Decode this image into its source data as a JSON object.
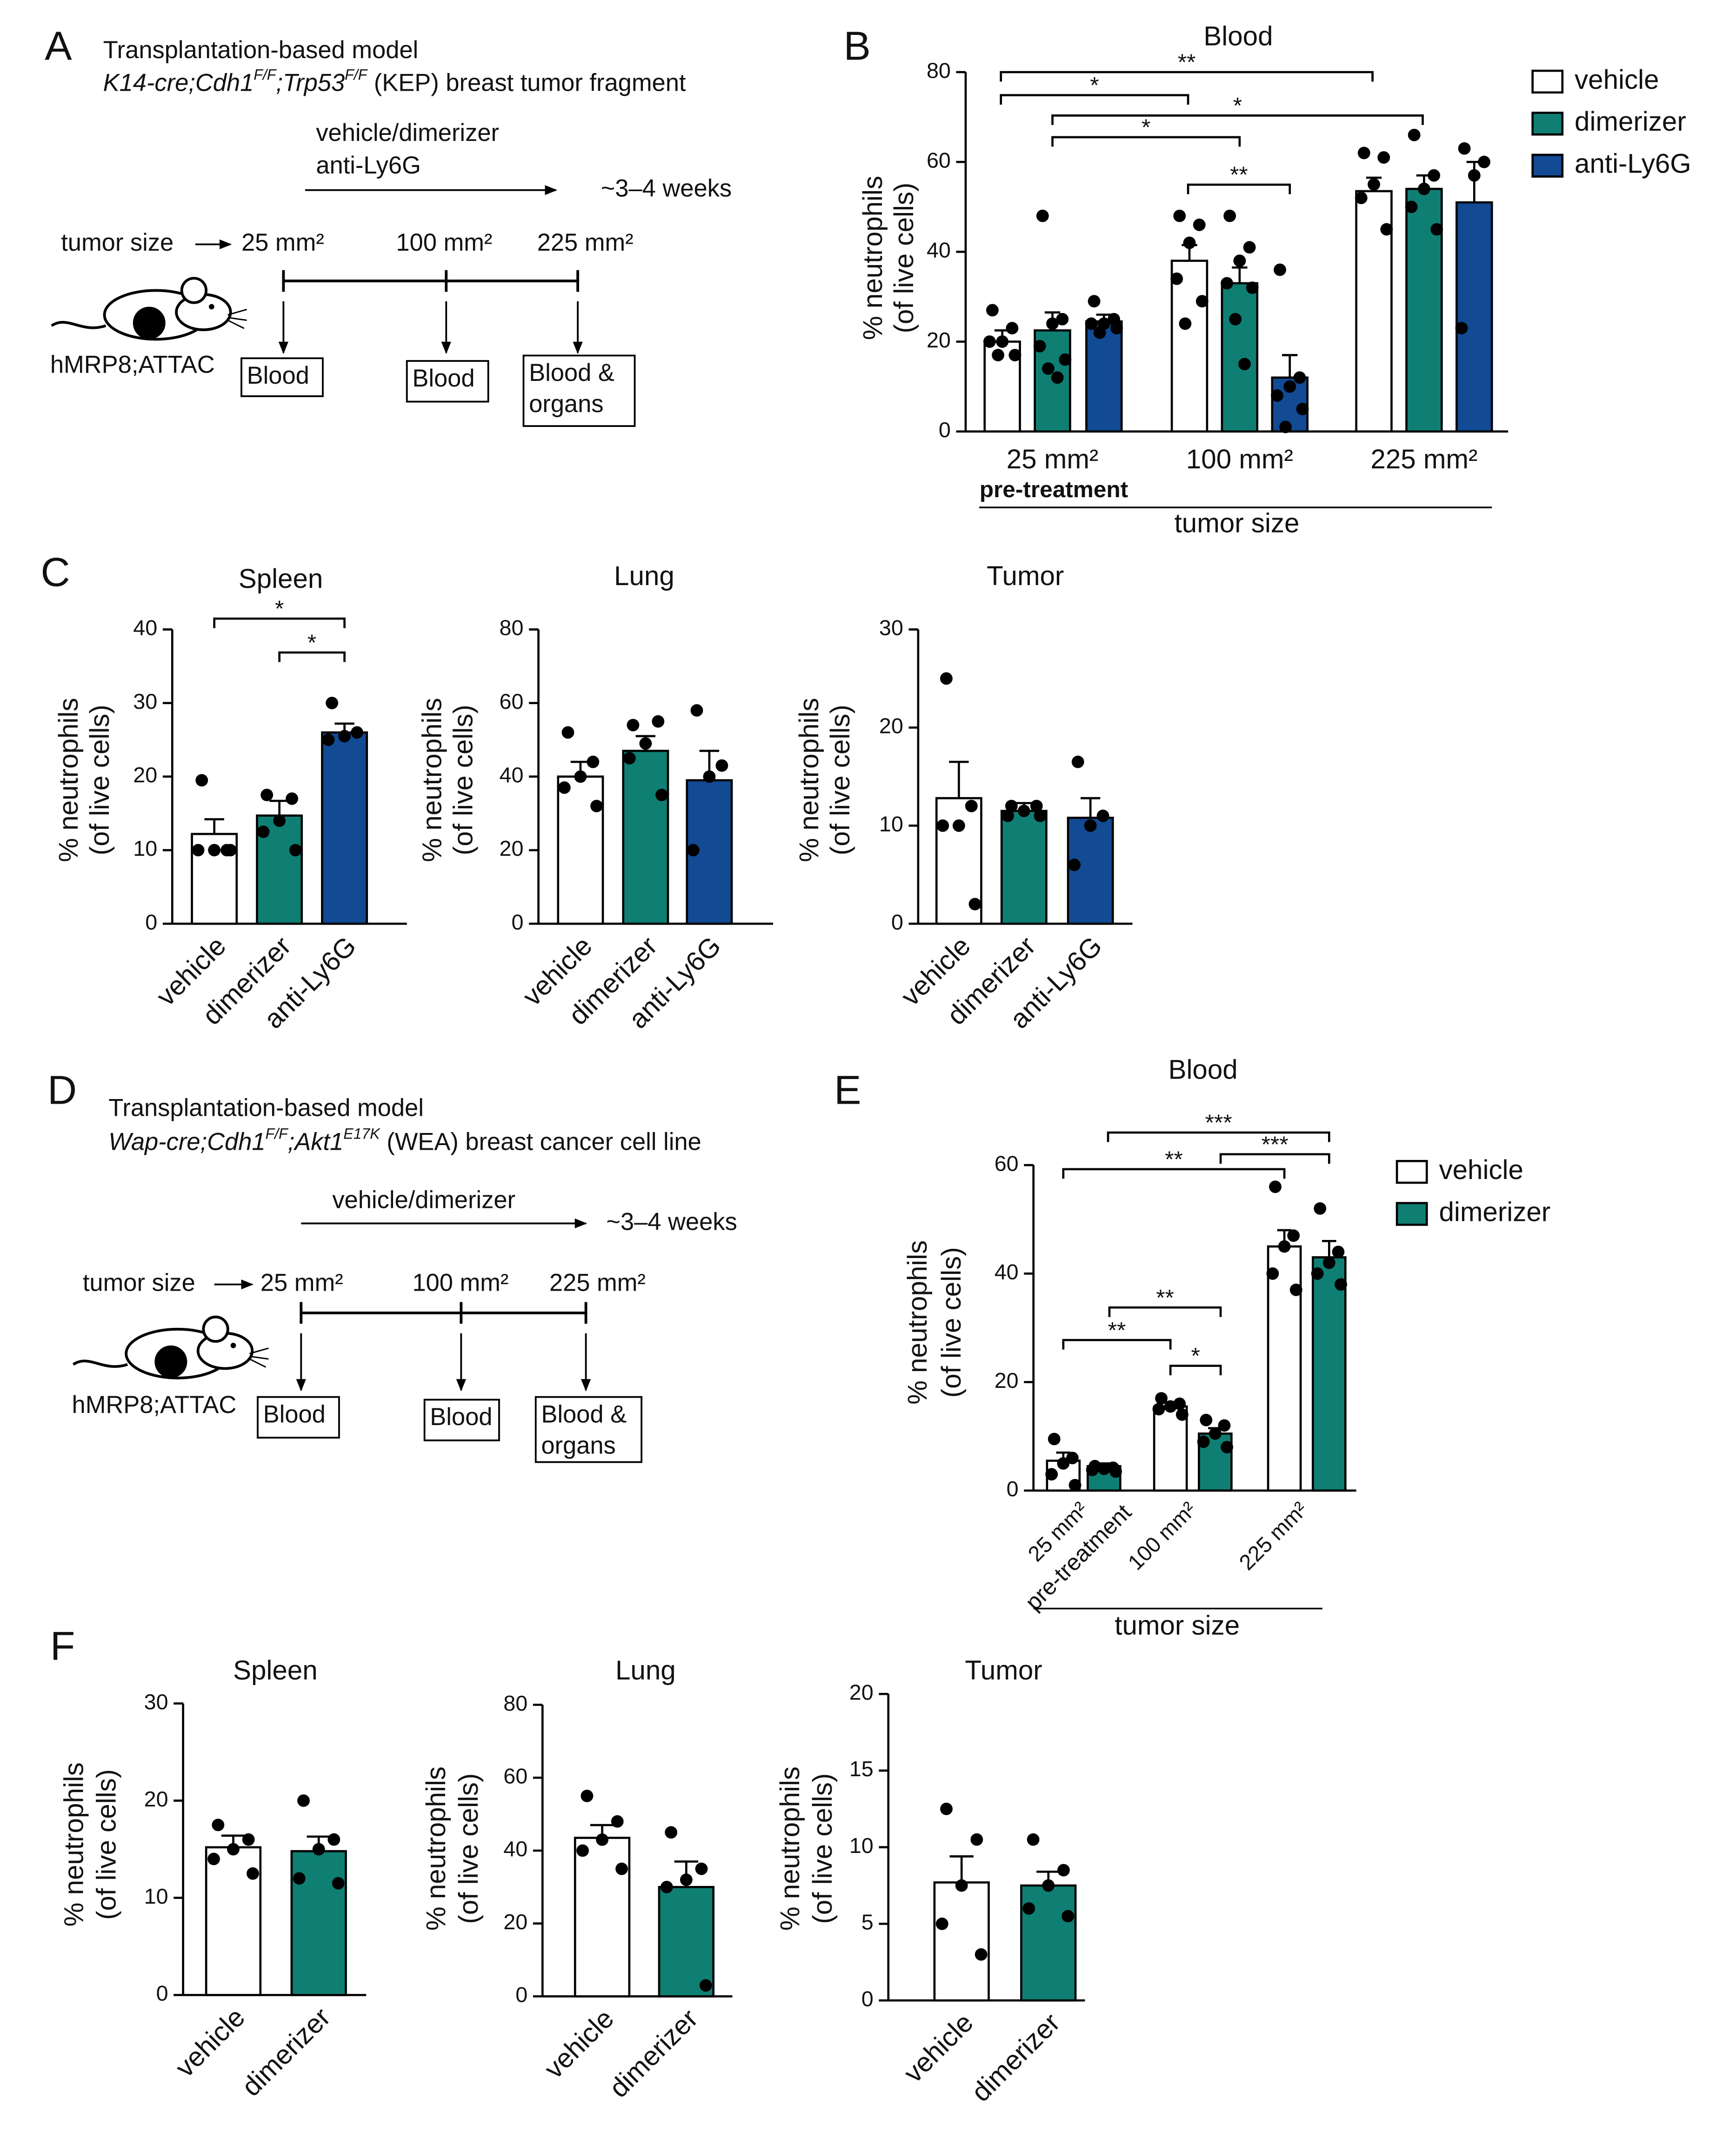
{
  "panels": {
    "labels": [
      "A",
      "B",
      "C",
      "D",
      "E",
      "F"
    ]
  },
  "schematics": [
    {
      "title": "Transplantation-based model",
      "subtitle_parts": [
        "K14-cre;Cdh1",
        "F/F",
        ";Trp53",
        "F/F",
        " (KEP) breast tumor fragment"
      ],
      "treatment": [
        "vehicle/dimerizer",
        "anti-Ly6G"
      ],
      "duration": "~3–4 weeks",
      "tumor_size_label": "tumor size",
      "sizes": [
        "25 mm²",
        "100 mm²",
        "225 mm²"
      ],
      "mouse_label": "hMRP8;ATTAC",
      "samples": [
        [
          "Blood"
        ],
        [
          "Blood"
        ],
        [
          "Blood &",
          "organs"
        ]
      ]
    },
    {
      "title": "Transplantation-based model",
      "subtitle_parts": [
        "Wap-cre;Cdh1",
        "F/F",
        ";Akt1",
        "E17K",
        " (WEA) breast cancer cell line"
      ],
      "treatment": [
        "vehicle/dimerizer"
      ],
      "duration": "~3–4 weeks",
      "tumor_size_label": "tumor size",
      "sizes": [
        "25 mm²",
        "100 mm²",
        "225 mm²"
      ],
      "mouse_label": "hMRP8;ATTAC",
      "samples": [
        [
          "Blood"
        ],
        [
          "Blood"
        ],
        [
          "Blood &",
          "organs"
        ]
      ]
    }
  ],
  "chart_data": [
    {
      "type": "bar",
      "title": "Blood",
      "ylabel": [
        "% neutrophils",
        "(of live cells)"
      ],
      "xlabel": "tumor size",
      "categories": [
        "25 mm²",
        "100 mm²",
        "225 mm²"
      ],
      "category_note": "pre-treatment",
      "series": [
        {
          "name": "vehicle",
          "color": "#ffffff",
          "values": [
            20,
            38,
            53.5
          ],
          "errors": [
            2.5,
            3.5,
            3
          ],
          "points": [
            [
              27,
              23,
              20,
              20,
              17,
              17
            ],
            [
              48,
              46,
              42,
              34,
              29,
              24
            ],
            [
              62,
              61,
              55,
              52,
              45
            ]
          ]
        },
        {
          "name": "dimerizer",
          "color": "#0f7f74",
          "values": [
            22.5,
            33,
            54
          ],
          "errors": [
            4,
            3.5,
            3
          ],
          "points": [
            [
              48,
              25,
              24,
              19,
              16,
              14,
              12
            ],
            [
              48,
              41,
              38,
              33,
              32,
              25,
              15
            ],
            [
              66,
              57,
              54,
              50,
              45
            ]
          ]
        },
        {
          "name": "anti-Ly6G",
          "color": "#124a94",
          "values": [
            24.5,
            12,
            51
          ],
          "errors": [
            1.5,
            5,
            9
          ],
          "points": [
            [
              29,
              25,
              24,
              24,
              23,
              22
            ],
            [
              36,
              12,
              10,
              8,
              5,
              1
            ],
            [
              63,
              60,
              57,
              23
            ]
          ]
        }
      ],
      "ylim": [
        0,
        80
      ],
      "yticks": [
        0,
        20,
        40,
        60,
        80
      ],
      "significance": [
        "**",
        "*",
        "*",
        "*",
        "**"
      ]
    },
    {
      "type": "bar",
      "title": "Spleen",
      "ylabel": [
        "% neutrophils",
        "(of live cells)"
      ],
      "categories": [
        "vehicle",
        "dimerizer",
        "anti-Ly6G"
      ],
      "colors": [
        "#ffffff",
        "#0f7f74",
        "#124a94"
      ],
      "values": [
        12.2,
        14.7,
        26
      ],
      "errors": [
        2,
        2,
        1.2
      ],
      "points": [
        [
          19.5,
          10,
          10,
          10,
          10
        ],
        [
          17.5,
          17,
          14,
          12.5,
          10
        ],
        [
          30,
          26,
          25.5,
          25
        ]
      ],
      "ylim": [
        0,
        40
      ],
      "yticks": [
        0,
        10,
        20,
        30,
        40
      ],
      "significance": [
        "*",
        "*"
      ]
    },
    {
      "type": "bar",
      "title": "Lung",
      "ylabel": [
        "% neutrophils",
        "(of live cells)"
      ],
      "categories": [
        "vehicle",
        "dimerizer",
        "anti-Ly6G"
      ],
      "colors": [
        "#ffffff",
        "#0f7f74",
        "#124a94"
      ],
      "values": [
        40,
        47,
        39
      ],
      "errors": [
        4,
        4,
        8
      ],
      "points": [
        [
          52,
          44,
          40,
          37,
          32
        ],
        [
          54,
          55,
          49,
          45,
          35
        ],
        [
          58,
          43,
          40,
          20
        ]
      ],
      "ylim": [
        0,
        80
      ],
      "yticks": [
        0,
        20,
        40,
        60,
        80
      ]
    },
    {
      "type": "bar",
      "title": "Tumor",
      "ylabel": [
        "% neutrophils",
        "(of live cells)"
      ],
      "categories": [
        "vehicle",
        "dimerizer",
        "anti-Ly6G"
      ],
      "colors": [
        "#ffffff",
        "#0f7f74",
        "#124a94"
      ],
      "values": [
        12.8,
        11.5,
        10.8
      ],
      "errors": [
        3.7,
        0.8,
        2
      ],
      "points": [
        [
          25,
          12,
          10,
          10,
          2
        ],
        [
          12,
          12,
          11.5,
          11,
          11
        ],
        [
          16.5,
          11,
          10,
          6
        ]
      ],
      "ylim": [
        0,
        30
      ],
      "yticks": [
        0,
        10,
        20,
        30
      ]
    },
    {
      "type": "bar",
      "title": "Blood",
      "ylabel": [
        "% neutrophils",
        "(of live cells)"
      ],
      "xlabel": "tumor size",
      "categories": [
        "25 mm²",
        "100 mm²",
        "225 mm²"
      ],
      "category_note": "pre-treatment",
      "series": [
        {
          "name": "vehicle",
          "color": "#ffffff",
          "values": [
            5.5,
            15.5,
            45
          ],
          "errors": [
            1.5,
            0.8,
            3
          ],
          "points": [
            [
              9.5,
              6,
              5,
              3,
              1
            ],
            [
              17,
              16,
              15.5,
              15,
              14
            ],
            [
              56,
              47,
              45,
              40,
              37
            ]
          ]
        },
        {
          "name": "dimerizer",
          "color": "#0f7f74",
          "values": [
            4.5,
            10.5,
            43
          ],
          "errors": [
            0.5,
            1,
            3
          ],
          "points": [
            [
              4.5,
              4.2,
              4,
              3.8,
              3.5
            ],
            [
              13,
              12,
              10.5,
              9,
              8
            ],
            [
              52,
              44,
              42,
              40,
              38
            ]
          ]
        }
      ],
      "ylim": [
        0,
        60
      ],
      "yticks": [
        0,
        20,
        40,
        60
      ],
      "significance": [
        "***",
        "**",
        "***",
        "**",
        "**",
        "*"
      ]
    },
    {
      "type": "bar",
      "title": "Spleen",
      "ylabel": [
        "% neutrophils",
        "(of live cells)"
      ],
      "categories": [
        "vehicle",
        "dimerizer"
      ],
      "colors": [
        "#ffffff",
        "#0f7f74"
      ],
      "values": [
        15.2,
        14.8
      ],
      "errors": [
        1.2,
        1.5
      ],
      "points": [
        [
          17.5,
          16,
          15,
          14,
          12.5
        ],
        [
          20,
          16,
          15,
          12,
          11.5
        ]
      ],
      "ylim": [
        0,
        30
      ],
      "yticks": [
        0,
        10,
        20,
        30
      ]
    },
    {
      "type": "bar",
      "title": "Lung",
      "ylabel": [
        "% neutrophils",
        "(of live cells)"
      ],
      "categories": [
        "vehicle",
        "dimerizer"
      ],
      "colors": [
        "#ffffff",
        "#0f7f74"
      ],
      "values": [
        43.5,
        30
      ],
      "errors": [
        3.5,
        7
      ],
      "points": [
        [
          55,
          48,
          43,
          40,
          35
        ],
        [
          45,
          35,
          32,
          30,
          3
        ]
      ],
      "ylim": [
        0,
        80
      ],
      "yticks": [
        0,
        20,
        40,
        60,
        80
      ]
    },
    {
      "type": "bar",
      "title": "Tumor",
      "ylabel": [
        "% neutrophils",
        "(of live cells)"
      ],
      "categories": [
        "vehicle",
        "dimerizer"
      ],
      "colors": [
        "#ffffff",
        "#0f7f74"
      ],
      "values": [
        7.7,
        7.5
      ],
      "errors": [
        1.7,
        0.9
      ],
      "points": [
        [
          12.5,
          10.5,
          7.5,
          5,
          3
        ],
        [
          10.5,
          8.5,
          7.5,
          6,
          5.5
        ]
      ],
      "ylim": [
        0,
        20
      ],
      "yticks": [
        0,
        5,
        10,
        15,
        20
      ]
    }
  ]
}
